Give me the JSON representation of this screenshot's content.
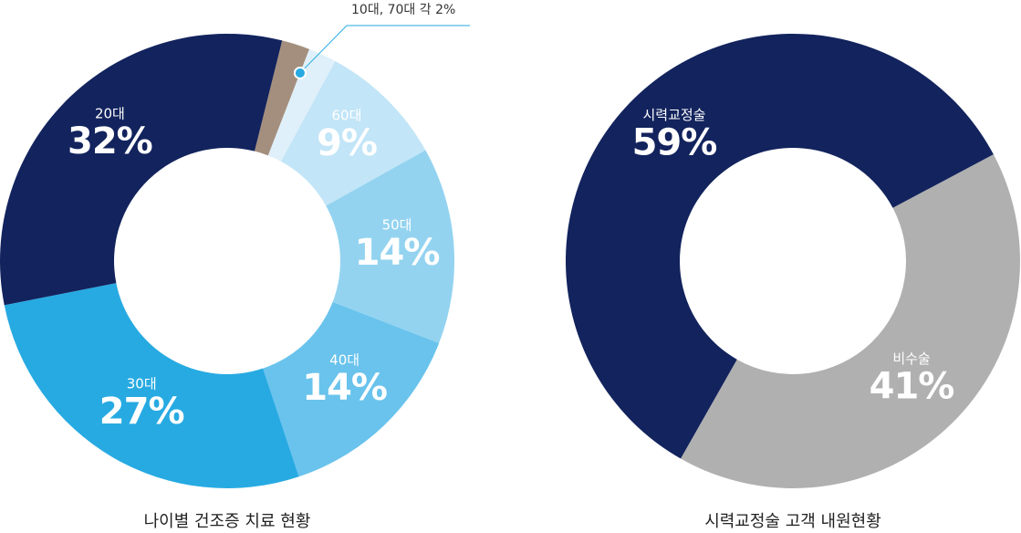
{
  "chart_data": [
    {
      "type": "donut",
      "title": "나이별 건조증 치료 현황",
      "categories": [
        null,
        null,
        "60대",
        "50대",
        "40대",
        "30대",
        "20대"
      ],
      "values": [
        2,
        2,
        9,
        14,
        14,
        27,
        32
      ],
      "value_labels": [
        null,
        null,
        "9%",
        "14%",
        "14%",
        "27%",
        "32%"
      ],
      "colors": [
        "#a48f7e",
        "#dff0fa",
        "#c2e5f7",
        "#93d3f0",
        "#69c3ec",
        "#27aae2",
        "#12235d"
      ],
      "annotation": "10대, 70대 각 2%"
    },
    {
      "type": "donut",
      "title": "시력교정술 고객 내원현황",
      "categories": [
        "비수술",
        "시력교정술"
      ],
      "values": [
        41,
        59
      ],
      "value_labels": [
        "41%",
        "59%"
      ],
      "colors": [
        "#b0b0b0",
        "#12235d"
      ]
    }
  ]
}
